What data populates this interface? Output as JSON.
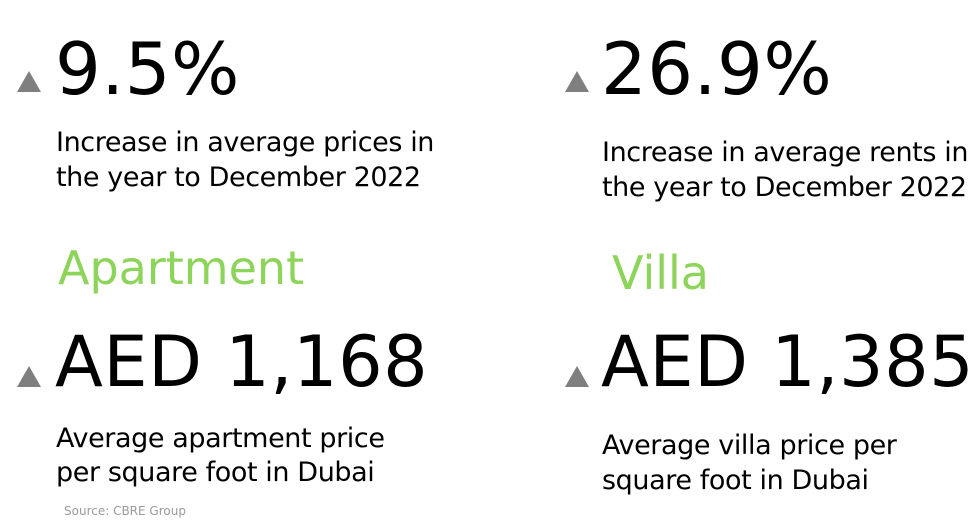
{
  "colors": {
    "accent_green": "#8dd45a",
    "arrow_gray": "#7f7f7f",
    "source_gray": "#9a9a9a",
    "text": "#000000"
  },
  "icons": {
    "increase": "triangle-up-icon"
  },
  "apartment": {
    "heading": "Apartment",
    "change_value": "9.5%",
    "change_desc_line1": "Increase in average prices in",
    "change_desc_line2": "the year to December 2022",
    "price_value": "AED 1,168",
    "price_desc_line1": "Average apartment price",
    "price_desc_line2": "per square foot in Dubai"
  },
  "villa": {
    "heading": "Villa",
    "change_value": "26.9%",
    "change_desc_line1": "Increase in average rents in",
    "change_desc_line2": "the year to December 2022",
    "price_value": "AED 1,385",
    "price_desc_line1": "Average villa price per",
    "price_desc_line2": "square foot in Dubai"
  },
  "source": "Source: CBRE Group"
}
